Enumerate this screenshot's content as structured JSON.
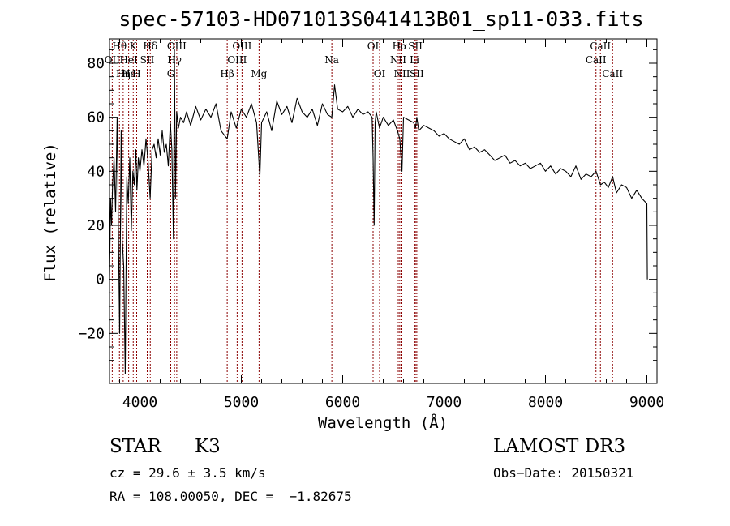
{
  "chart_data": {
    "type": "line",
    "title": "spec-57103-HD071013S041413B01_sp11-033.fits",
    "xlabel": "Wavelength (Å)",
    "ylabel": "Flux (relative)",
    "xlim": [
      3700,
      9100
    ],
    "ylim": [
      -38.5,
      89
    ],
    "x_ticks": [
      4000,
      5000,
      6000,
      7000,
      8000,
      9000
    ],
    "y_ticks": [
      -20,
      0,
      20,
      40,
      60,
      80
    ],
    "grid": false,
    "series": [
      {
        "name": "flux",
        "x": [
          3700,
          3710,
          3720,
          3730,
          3745,
          3760,
          3775,
          3790,
          3800,
          3815,
          3825,
          3840,
          3855,
          3870,
          3885,
          3900,
          3915,
          3930,
          3945,
          3960,
          3970,
          3985,
          4000,
          4020,
          4040,
          4060,
          4080,
          4101,
          4120,
          4140,
          4160,
          4180,
          4200,
          4220,
          4240,
          4260,
          4280,
          4300,
          4315,
          4330,
          4340,
          4350,
          4362,
          4380,
          4400,
          4430,
          4460,
          4500,
          4550,
          4600,
          4650,
          4700,
          4750,
          4800,
          4861,
          4900,
          4950,
          5000,
          5050,
          5100,
          5150,
          5183,
          5200,
          5250,
          5300,
          5350,
          5400,
          5450,
          5500,
          5550,
          5600,
          5650,
          5700,
          5750,
          5800,
          5850,
          5893,
          5920,
          5950,
          6000,
          6050,
          6100,
          6150,
          6200,
          6250,
          6290,
          6300,
          6310,
          6320,
          6330,
          6363,
          6400,
          6450,
          6500,
          6540,
          6563,
          6585,
          6600,
          6650,
          6700,
          6718,
          6731,
          6750,
          6800,
          6850,
          6900,
          6950,
          7000,
          7050,
          7100,
          7150,
          7200,
          7250,
          7300,
          7350,
          7400,
          7450,
          7500,
          7550,
          7600,
          7650,
          7700,
          7750,
          7800,
          7850,
          7900,
          7950,
          8000,
          8050,
          8100,
          8150,
          8200,
          8250,
          8300,
          8350,
          8400,
          8450,
          8498,
          8542,
          8580,
          8620,
          8662,
          8700,
          8750,
          8800,
          8850,
          8900,
          8950,
          9000,
          9005
        ],
        "y": [
          0,
          30,
          20,
          35,
          45,
          25,
          60,
          10,
          -20,
          55,
          15,
          5,
          -35,
          38,
          28,
          45,
          18,
          40,
          35,
          48,
          33,
          45,
          40,
          48,
          42,
          52,
          44,
          30,
          48,
          50,
          45,
          52,
          46,
          55,
          47,
          50,
          42,
          58,
          48,
          15,
          85,
          30,
          62,
          56,
          60,
          58,
          62,
          57,
          64,
          59,
          63,
          60,
          65,
          55,
          52,
          62,
          56,
          63,
          60,
          65,
          58,
          38,
          58,
          62,
          55,
          66,
          61,
          64,
          58,
          67,
          62,
          60,
          63,
          57,
          65,
          61,
          60,
          72,
          63,
          62,
          64,
          60,
          63,
          61,
          62,
          60,
          45,
          20,
          58,
          62,
          56,
          60,
          57,
          59,
          55,
          52,
          40,
          60,
          59,
          58,
          56,
          60,
          55,
          57,
          56,
          55,
          53,
          54,
          52,
          51,
          50,
          52,
          48,
          49,
          47,
          48,
          46,
          44,
          45,
          46,
          43,
          44,
          42,
          43,
          41,
          42,
          43,
          40,
          42,
          39,
          41,
          40,
          38,
          42,
          37,
          39,
          38,
          40,
          35,
          36,
          34,
          38,
          32,
          35,
          34,
          30,
          33,
          30,
          28,
          0
        ]
      }
    ],
    "spectral_lines": [
      {
        "label": "Hθ",
        "x": 3798,
        "row": 0
      },
      {
        "label": "OII",
        "x": 3727,
        "row": 1
      },
      {
        "label": "Hη",
        "x": 3835,
        "row": 2
      },
      {
        "label": "Hε",
        "x": 3889,
        "row": 2
      },
      {
        "label": "HeI",
        "x": 3889,
        "row": 1
      },
      {
        "label": "K",
        "x": 3934,
        "row": 0
      },
      {
        "label": "H",
        "x": 3968,
        "row": 2
      },
      {
        "label": "SII",
        "x": 4072,
        "row": 1
      },
      {
        "label": "Hδ",
        "x": 4102,
        "row": 0
      },
      {
        "label": "G",
        "x": 4304,
        "row": 2
      },
      {
        "label": "OIII",
        "x": 4363,
        "row": 0
      },
      {
        "label": "Hγ",
        "x": 4341,
        "row": 1
      },
      {
        "label": "Hβ",
        "x": 4861,
        "row": 2
      },
      {
        "label": "OIII",
        "x": 4959,
        "row": 1
      },
      {
        "label": "OIII",
        "x": 5007,
        "row": 0
      },
      {
        "label": "Mg",
        "x": 5175,
        "row": 2
      },
      {
        "label": "Na",
        "x": 5893,
        "row": 1
      },
      {
        "label": "OI",
        "x": 6300,
        "row": 0
      },
      {
        "label": "OI",
        "x": 6364,
        "row": 2
      },
      {
        "label": "NII",
        "x": 6548,
        "row": 1
      },
      {
        "label": "NII",
        "x": 6584,
        "row": 2
      },
      {
        "label": "Hα",
        "x": 6563,
        "row": 0
      },
      {
        "label": "SII",
        "x": 6717,
        "row": 0
      },
      {
        "label": "SII",
        "x": 6731,
        "row": 2
      },
      {
        "label": "Li",
        "x": 6708,
        "row": 1
      },
      {
        "label": "CaII",
        "x": 8498,
        "row": 1
      },
      {
        "label": "CaII",
        "x": 8542,
        "row": 0
      },
      {
        "label": "CaII",
        "x": 8662,
        "row": 2
      }
    ]
  },
  "info": {
    "object_class": "STAR",
    "subclass": "K3",
    "redshift": "cz = 29.6 ± 3.5 km/s",
    "coords": "RA = 108.00050, DEC =  −1.82675",
    "survey": "LAMOST DR3",
    "obs_date": "Obs−Date: 20150321"
  },
  "colors": {
    "line_marker": "#8b0000",
    "spectrum": "#000000",
    "axes": "#000000"
  }
}
